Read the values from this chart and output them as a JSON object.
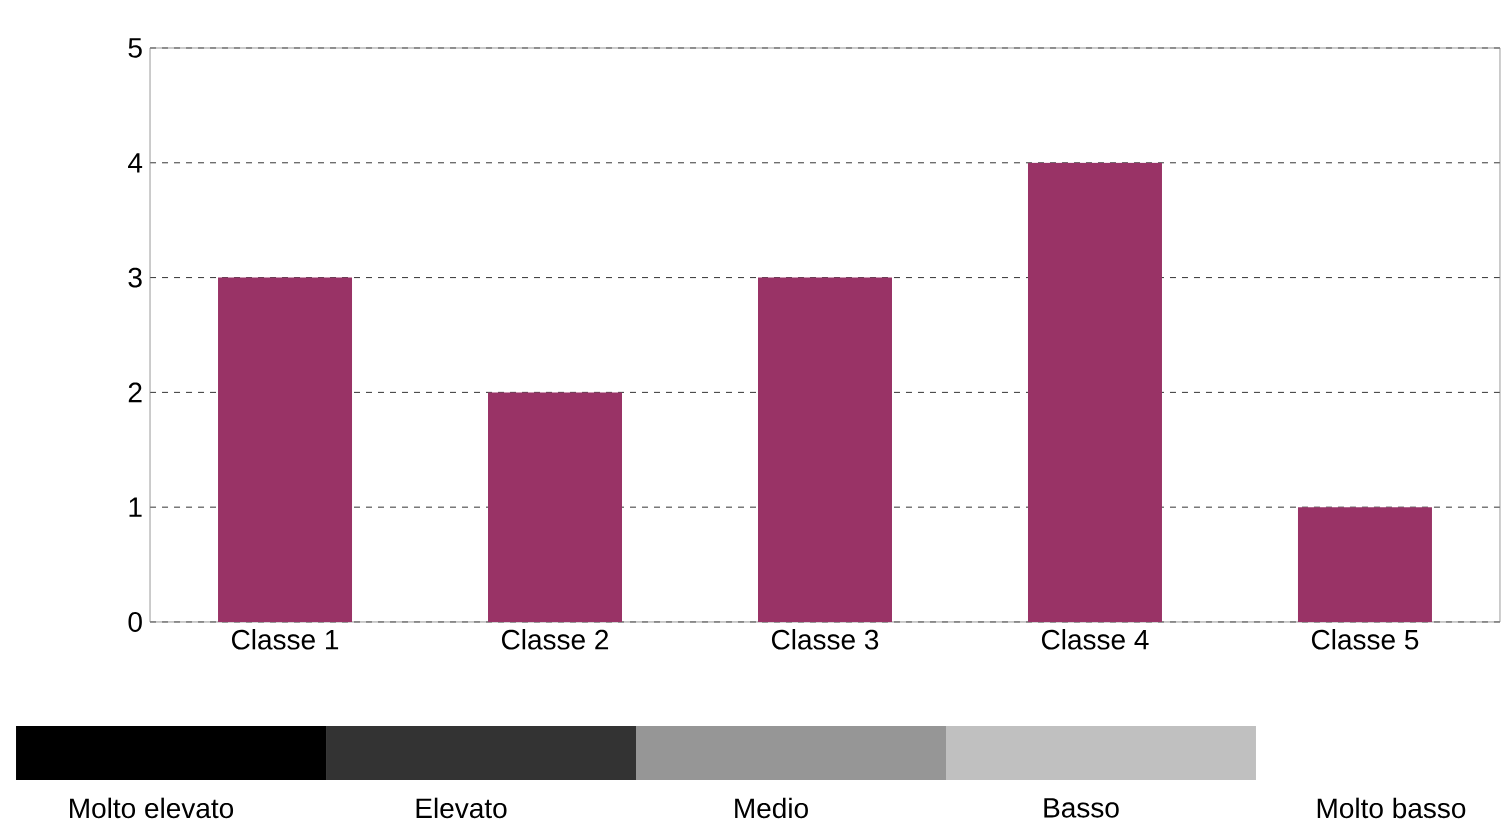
{
  "chart_data": {
    "type": "bar",
    "categories": [
      "Classe 1",
      "Classe 2",
      "Classe 3",
      "Classe 4",
      "Classe 5"
    ],
    "values": [
      3,
      2,
      3,
      4,
      1
    ],
    "color": "#993366",
    "ylim": [
      0,
      5
    ],
    "yticks": [
      0,
      1,
      2,
      3,
      4,
      5
    ],
    "grid": "y",
    "annotations": [
      "Molto elevato",
      "Elevato",
      "Medio",
      "Basso",
      "Molto basso"
    ]
  }
}
